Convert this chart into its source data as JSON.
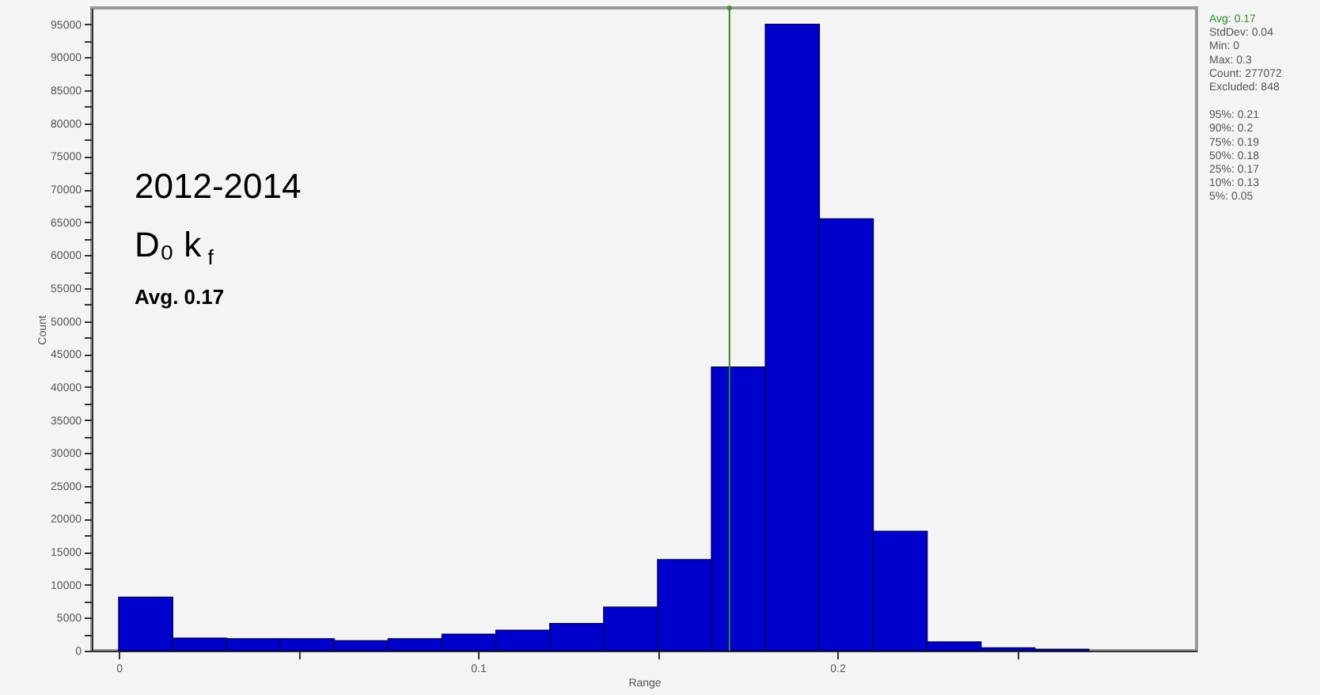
{
  "chart_data": {
    "type": "histogram",
    "xlabel": "Range",
    "ylabel": "Count",
    "bins": [
      0,
      0.015,
      0.03,
      0.045,
      0.06,
      0.075,
      0.09,
      0.105,
      0.12,
      0.135,
      0.15,
      0.165,
      0.18,
      0.195,
      0.21,
      0.225,
      0.24,
      0.255,
      0.27
    ],
    "values": [
      8100,
      1900,
      1800,
      1800,
      1500,
      1800,
      2500,
      3100,
      4100,
      6600,
      13800,
      43000,
      95000,
      65500,
      18100,
      1300,
      400,
      200
    ],
    "color": "#0000cc",
    "xlim": [
      -0.0075,
      0.3
    ],
    "xticks": [
      0,
      {
        "value": 0.05,
        "label": null
      },
      0.1,
      {
        "value": 0.15,
        "label": null
      },
      0.2,
      {
        "value": 0.25,
        "label": null
      }
    ],
    "ylim": [
      0,
      97500
    ],
    "yticks": [
      0,
      {
        "value": 2500,
        "label": null
      },
      5000,
      {
        "value": 7500,
        "label": null
      },
      10000,
      {
        "value": 12500,
        "label": null
      },
      15000,
      {
        "value": 17500,
        "label": null
      },
      20000,
      {
        "value": 22500,
        "label": null
      },
      25000,
      {
        "value": 27500,
        "label": null
      },
      30000,
      {
        "value": 32500,
        "label": null
      },
      35000,
      {
        "value": 37500,
        "label": null
      },
      40000,
      {
        "value": 42500,
        "label": null
      },
      45000,
      {
        "value": 47500,
        "label": null
      },
      50000,
      {
        "value": 52500,
        "label": null
      },
      55000,
      {
        "value": 57500,
        "label": null
      },
      60000,
      {
        "value": 62500,
        "label": null
      },
      65000,
      {
        "value": 67500,
        "label": null
      },
      70000,
      {
        "value": 72500,
        "label": null
      },
      75000,
      {
        "value": 77500,
        "label": null
      },
      80000,
      {
        "value": 82500,
        "label": null
      },
      85000,
      {
        "value": 87500,
        "label": null
      },
      90000,
      {
        "value": 92500,
        "label": null
      },
      95000
    ],
    "ref_lines": [
      {
        "axis": "x",
        "value": 0.17,
        "color": "#2e8b2e"
      }
    ],
    "grid": false,
    "annotations": [
      "2012-2014",
      "D₀ k$_{f}$",
      "Avg. 0.17",
      "Avg: 0.17",
      "StdDev: 0.04",
      "Min: 0",
      "Max: 0.3",
      "Count: 277072",
      "Excluded: 848",
      "95%: 0.21",
      "90%: 0.2",
      "75%: 0.19",
      "50%: 0.18",
      "25%: 0.17",
      "10%: 0.13",
      "5%: 0.05"
    ]
  }
}
